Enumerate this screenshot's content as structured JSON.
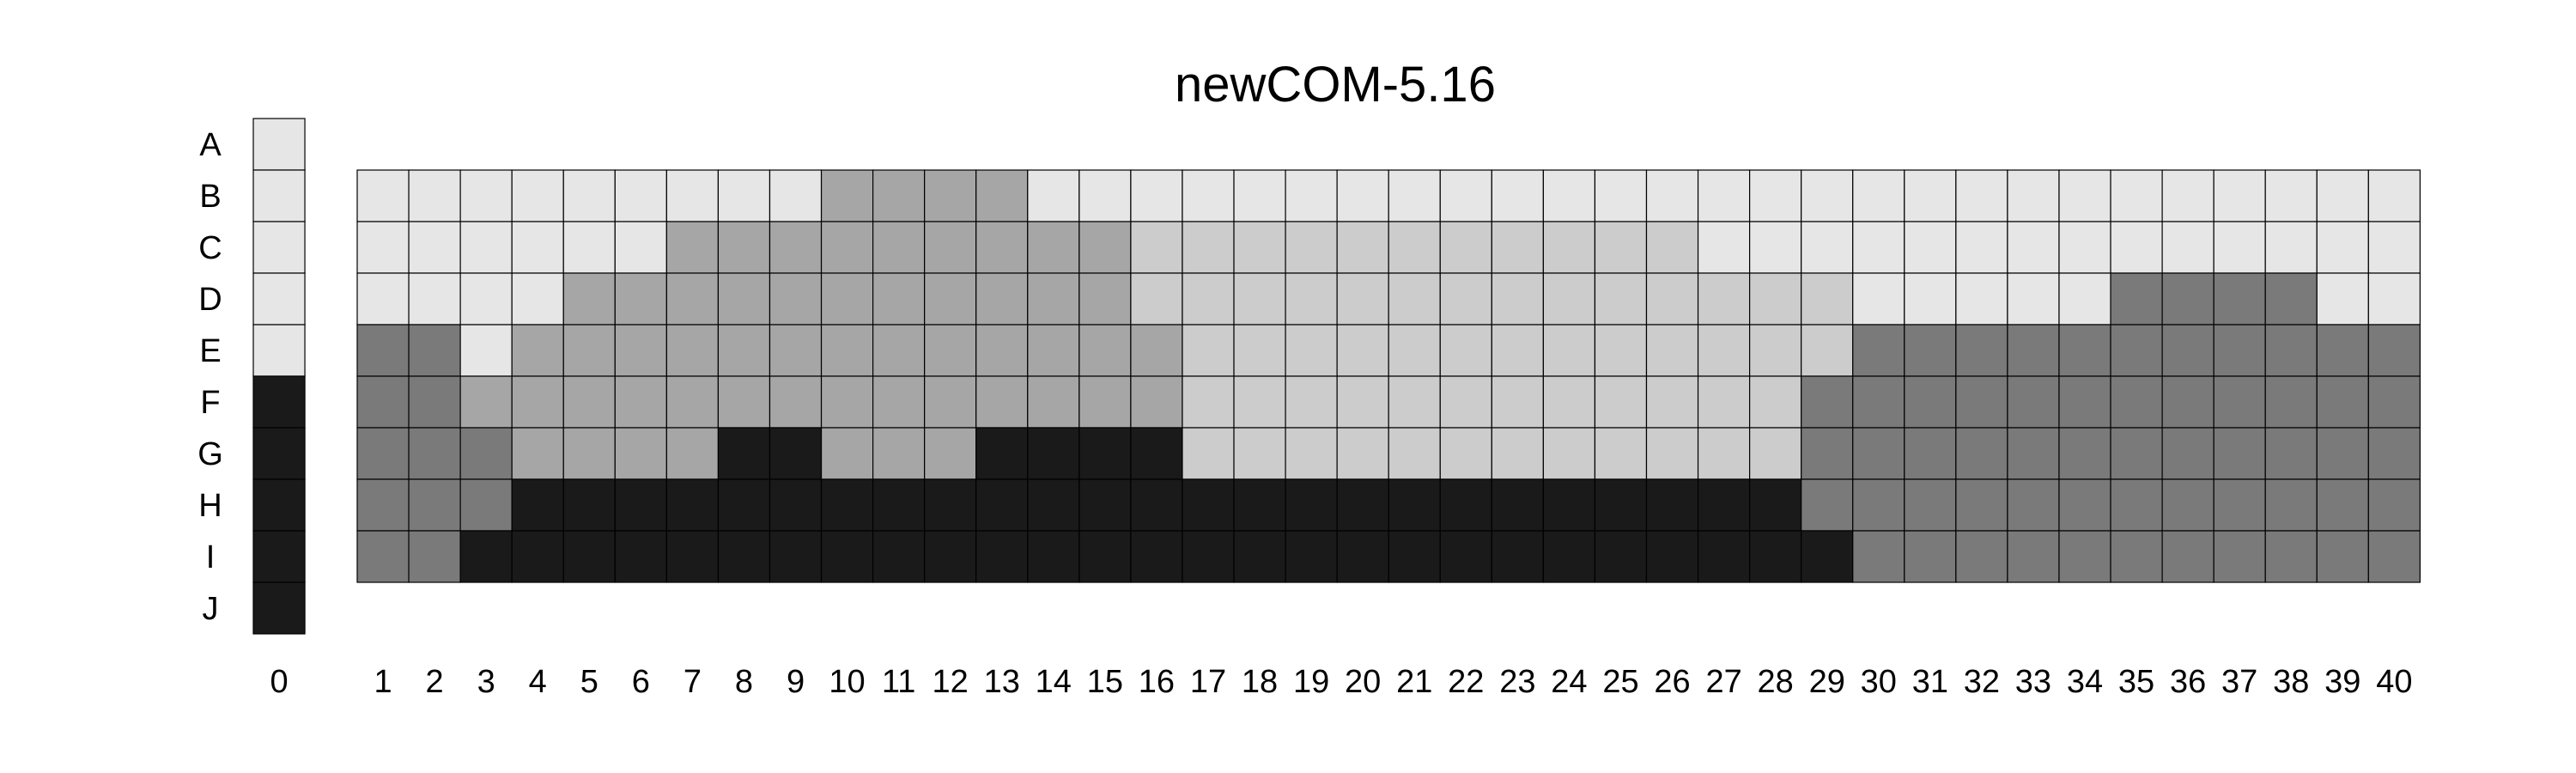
{
  "chart_data": {
    "type": "heatmap",
    "title": "newCOM-5.16",
    "row_labels": [
      "A",
      "B",
      "C",
      "D",
      "E",
      "F",
      "G",
      "H",
      "I",
      "J"
    ],
    "reference_column": {
      "label": "0",
      "values": [
        1,
        1,
        1,
        1,
        1,
        4,
        4,
        4,
        4,
        4
      ]
    },
    "columns": [
      "1",
      "2",
      "3",
      "4",
      "5",
      "6",
      "7",
      "8",
      "9",
      "10",
      "11",
      "12",
      "13",
      "14",
      "15",
      "16",
      "17",
      "18",
      "19",
      "20",
      "21",
      "22",
      "23",
      "24",
      "25",
      "26",
      "27",
      "28",
      "29",
      "30",
      "31",
      "32",
      "33",
      "34",
      "35",
      "36",
      "37",
      "38",
      "39",
      "40"
    ],
    "grid_rows": [
      "B",
      "C",
      "D",
      "E",
      "F",
      "G",
      "H",
      "I"
    ],
    "grid_values": [
      [
        1,
        1,
        1,
        1,
        1,
        1,
        1,
        1,
        1,
        2,
        2,
        2,
        2,
        1,
        1,
        1,
        1,
        1,
        1,
        1,
        1,
        1,
        1,
        1,
        1,
        1,
        1,
        1,
        1,
        1,
        1,
        1,
        1,
        1,
        1,
        1,
        1,
        1,
        1,
        1
      ],
      [
        1,
        1,
        1,
        1,
        1,
        1,
        2,
        2,
        2,
        2,
        2,
        2,
        2,
        2,
        2,
        5,
        5,
        5,
        5,
        5,
        5,
        5,
        5,
        5,
        5,
        5,
        1,
        1,
        1,
        1,
        1,
        1,
        1,
        1,
        1,
        1,
        1,
        1,
        1,
        1
      ],
      [
        1,
        1,
        1,
        1,
        2,
        2,
        2,
        2,
        2,
        2,
        2,
        2,
        2,
        2,
        2,
        5,
        5,
        5,
        5,
        5,
        5,
        5,
        5,
        5,
        5,
        5,
        5,
        5,
        5,
        1,
        1,
        1,
        1,
        1,
        3,
        3,
        3,
        3,
        1,
        1
      ],
      [
        3,
        3,
        1,
        2,
        2,
        2,
        2,
        2,
        2,
        2,
        2,
        2,
        2,
        2,
        2,
        2,
        5,
        5,
        5,
        5,
        5,
        5,
        5,
        5,
        5,
        5,
        5,
        5,
        5,
        3,
        3,
        3,
        3,
        3,
        3,
        3,
        3,
        3,
        3,
        3
      ],
      [
        3,
        3,
        2,
        2,
        2,
        2,
        2,
        2,
        2,
        2,
        2,
        2,
        2,
        2,
        2,
        2,
        5,
        5,
        5,
        5,
        5,
        5,
        5,
        5,
        5,
        5,
        5,
        5,
        3,
        3,
        3,
        3,
        3,
        3,
        3,
        3,
        3,
        3,
        3,
        3
      ],
      [
        3,
        3,
        3,
        2,
        2,
        2,
        2,
        4,
        4,
        2,
        2,
        2,
        4,
        4,
        4,
        4,
        5,
        5,
        5,
        5,
        5,
        5,
        5,
        5,
        5,
        5,
        5,
        5,
        3,
        3,
        3,
        3,
        3,
        3,
        3,
        3,
        3,
        3,
        3,
        3
      ],
      [
        3,
        3,
        3,
        4,
        4,
        4,
        4,
        4,
        4,
        4,
        4,
        4,
        4,
        4,
        4,
        4,
        4,
        4,
        4,
        4,
        4,
        4,
        4,
        4,
        4,
        4,
        4,
        4,
        3,
        3,
        3,
        3,
        3,
        3,
        3,
        3,
        3,
        3,
        3,
        3
      ],
      [
        3,
        3,
        4,
        4,
        4,
        4,
        4,
        4,
        4,
        4,
        4,
        4,
        4,
        4,
        4,
        4,
        4,
        4,
        4,
        4,
        4,
        4,
        4,
        4,
        4,
        4,
        4,
        4,
        4,
        3,
        3,
        3,
        3,
        3,
        3,
        3,
        3,
        3,
        3,
        3
      ]
    ],
    "color_scale": {
      "1": "#e6e6e6",
      "2": "#a6a6a6",
      "3": "#7a7a7a",
      "4": "#1a1a1a",
      "5": "#cccccc"
    },
    "legend": "none",
    "grid": true
  }
}
